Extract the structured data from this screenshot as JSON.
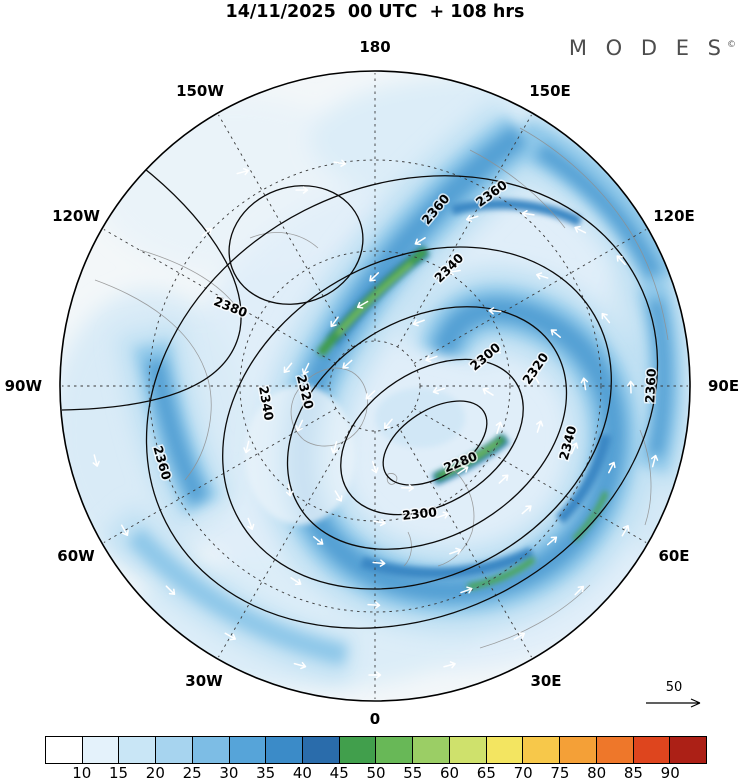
{
  "header": {
    "title": "14/11/2025  00 UTC  + 108 hrs",
    "brand": "M O D E S",
    "brand_sup": "©"
  },
  "map": {
    "lon_labels": [
      "180",
      "150W",
      "150E",
      "120W",
      "120E",
      "90W",
      "90E",
      "60W",
      "60E",
      "30W",
      "30E",
      "0"
    ]
  },
  "chart_data": {
    "type": "heatmap",
    "title": "14/11/2025 00 UTC + 108 hrs",
    "projection": "north polar stereographic",
    "field": "wind speed shading with geopotential height contours and wind vectors",
    "contour_levels": [
      2280,
      2300,
      2320,
      2340,
      2360,
      2380
    ],
    "contour_labels": {
      "c2280": "2280",
      "c2300": "2300",
      "c2320": "2320",
      "c2340": "2340",
      "c2360": "2360",
      "c2380": "2380"
    },
    "lon_labels": [
      "180",
      "150W",
      "150E",
      "120W",
      "120E",
      "90W",
      "90E",
      "60W",
      "60E",
      "30W",
      "30E",
      "0"
    ],
    "colorbar": {
      "tick_labels": [
        "10",
        "15",
        "20",
        "25",
        "30",
        "35",
        "40",
        "45",
        "50",
        "55",
        "60",
        "65",
        "70",
        "75",
        "80",
        "85",
        "90"
      ],
      "colors": [
        "#ffffff",
        "#e4f2fb",
        "#c9e6f6",
        "#a7d4ef",
        "#7dbde5",
        "#56a4d9",
        "#3b8bc8",
        "#2a6cab",
        "#419f4c",
        "#68b857",
        "#9bce65",
        "#cfe16c",
        "#f3e561",
        "#f7c84a",
        "#f4a037",
        "#ee772a",
        "#de451e",
        "#ac2016"
      ]
    },
    "reference_vector": {
      "label": "50"
    }
  }
}
